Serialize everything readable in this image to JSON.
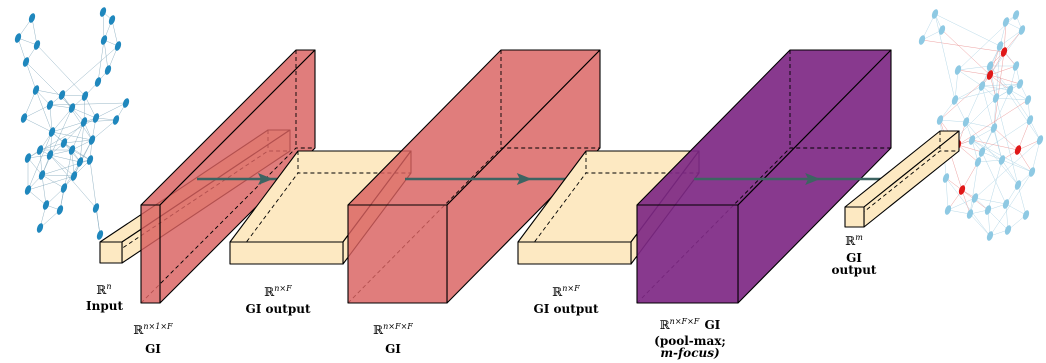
{
  "colors": {
    "cream": "#fde9c2",
    "red": "#d9605f",
    "purple": "#7e2884",
    "arrow": "#3d6462",
    "graph_blue": "#1f87bd",
    "graph_light_blue": "#8ec9e3",
    "graph_red": "#e01818"
  },
  "labels": {
    "input": {
      "space_base": "ℝ",
      "space_sup": "n",
      "name": "Input"
    },
    "gi1": {
      "space_base": "ℝ",
      "space_sup": "n×1×F",
      "name": "GI"
    },
    "gi_out1": {
      "space_base": "ℝ",
      "space_sup": "n×F",
      "name": "GI output"
    },
    "gi2": {
      "space_base": "ℝ",
      "space_sup": "n×F×F",
      "name": "GI"
    },
    "gi_out2": {
      "space_base": "ℝ",
      "space_sup": "n×F",
      "name": "GI output"
    },
    "gi3": {
      "space_base": "ℝ",
      "space_sup": "n×F×F",
      "name": "GI",
      "line2": "(pool-max;",
      "line3": "m-focus)"
    },
    "out": {
      "space_base": "ℝ",
      "space_sup": "m",
      "name_line1": "GI",
      "name_line2": "output"
    }
  }
}
